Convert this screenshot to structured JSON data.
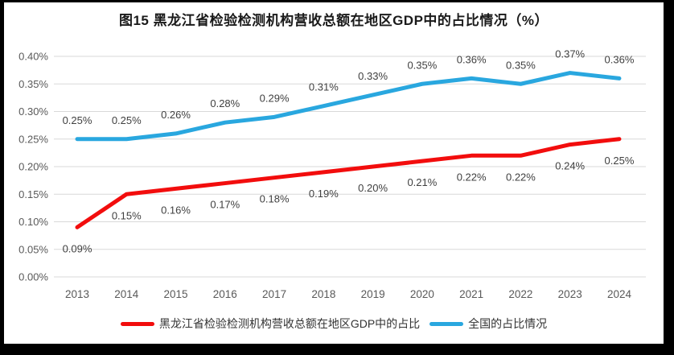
{
  "frame": {
    "border_color": "#000000",
    "background": "#ffffff"
  },
  "chart_data": {
    "type": "line",
    "title": "图15  黑龙江省检验检测机构营收总额在地区GDP中的占比情况（%）",
    "categories": [
      "2013",
      "2014",
      "2015",
      "2016",
      "2017",
      "2018",
      "2019",
      "2020",
      "2021",
      "2022",
      "2023",
      "2024"
    ],
    "series": [
      {
        "name": "黑龙江省检验检测机构营收总额在地区GDP中的占比",
        "color": "#f20d0d",
        "values": [
          0.09,
          0.15,
          0.16,
          0.17,
          0.18,
          0.19,
          0.2,
          0.21,
          0.22,
          0.22,
          0.24,
          0.25
        ],
        "data_labels": [
          "0.09%",
          "0.15%",
          "0.16%",
          "0.17%",
          "0.18%",
          "0.19%",
          "0.20%",
          "0.21%",
          "0.22%",
          "0.22%",
          "0.24%",
          "0.25%"
        ],
        "label_position": "below"
      },
      {
        "name": "全国的占比情况",
        "color": "#29a7df",
        "values": [
          0.25,
          0.25,
          0.26,
          0.28,
          0.29,
          0.31,
          0.33,
          0.35,
          0.36,
          0.35,
          0.37,
          0.36
        ],
        "data_labels": [
          "0.25%",
          "0.25%",
          "0.26%",
          "0.28%",
          "0.29%",
          "0.31%",
          "0.33%",
          "0.35%",
          "0.36%",
          "0.35%",
          "0.37%",
          "0.36%"
        ],
        "label_position": "above"
      }
    ],
    "xlabel": "",
    "ylabel": "",
    "unit": "%",
    "y_ticks": [
      "0.00%",
      "0.05%",
      "0.10%",
      "0.15%",
      "0.20%",
      "0.25%",
      "0.30%",
      "0.35%",
      "0.40%"
    ],
    "ylim": [
      0,
      0.4
    ],
    "grid": true,
    "gridline_color": "#d9d9d9",
    "axis_text_color": "#595959",
    "data_label_color": "#404040",
    "legend_position": "bottom"
  }
}
